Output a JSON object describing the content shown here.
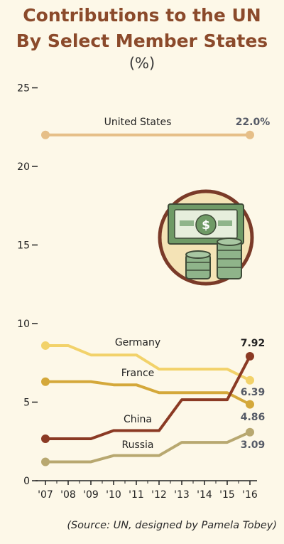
{
  "header": {
    "title_line1": "Contributions to the UN",
    "title_line2": "By Select Member States",
    "unit": "(%)"
  },
  "footer": {
    "source": "(Source: UN, designed by Pamela Tobey)"
  },
  "colors": {
    "background": "#fdf8e8",
    "title": "#8b4a2b",
    "united_states": "#e6bf88",
    "germany": "#f2d26a",
    "france": "#d4a83a",
    "china": "#8b3a24",
    "russia": "#b8a870",
    "value_label": "#555a66"
  },
  "icon": "money-stack-icon",
  "chart_data": {
    "type": "line",
    "x": [
      "'07",
      "'08",
      "'09",
      "'10",
      "'11",
      "'12",
      "'13",
      "'14",
      "'15",
      "'16"
    ],
    "ylim": [
      0,
      25
    ],
    "yticks": [
      "0",
      "5",
      "10",
      "15",
      "20",
      "25"
    ],
    "ytick_values": [
      0,
      5,
      10,
      15,
      20,
      25
    ],
    "grid": false,
    "series": [
      {
        "name": "United States",
        "key": "united_states",
        "values": [
          22.0,
          22.0,
          22.0,
          22.0,
          22.0,
          22.0,
          22.0,
          22.0,
          22.0,
          22.0
        ],
        "end_label": "22.0%"
      },
      {
        "name": "Germany",
        "key": "germany",
        "values": [
          8.6,
          8.6,
          8.0,
          8.0,
          8.0,
          7.1,
          7.1,
          7.1,
          7.1,
          6.39
        ],
        "end_label": "6.39"
      },
      {
        "name": "France",
        "key": "france",
        "values": [
          6.3,
          6.3,
          6.3,
          6.1,
          6.1,
          5.6,
          5.6,
          5.6,
          5.6,
          4.86
        ],
        "end_label": "4.86"
      },
      {
        "name": "China",
        "key": "china",
        "values": [
          2.67,
          2.67,
          2.67,
          3.19,
          3.19,
          3.19,
          5.15,
          5.15,
          5.15,
          7.92
        ],
        "end_label": "7.92"
      },
      {
        "name": "Russia",
        "key": "russia",
        "values": [
          1.2,
          1.2,
          1.2,
          1.6,
          1.6,
          1.6,
          2.44,
          2.44,
          2.44,
          3.09
        ],
        "end_label": "3.09"
      }
    ]
  }
}
